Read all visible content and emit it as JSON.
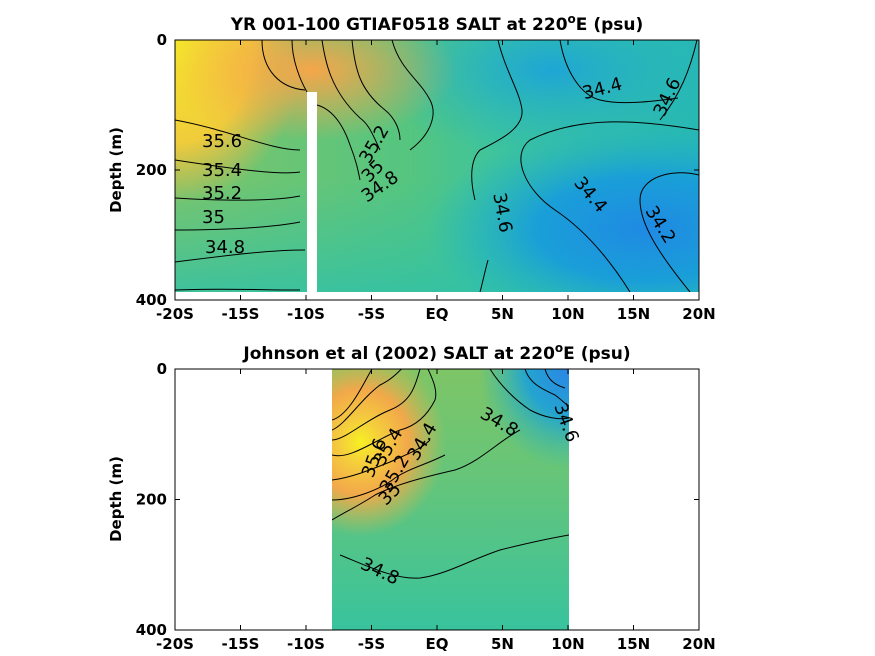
{
  "chart_data": [
    {
      "type": "heatmap",
      "title": "YR 001-100 GTIAF0518 SALT at 220",
      "title_sup": "o",
      "title_suffix": "E (psu)",
      "ylabel": "Depth (m)",
      "xlabel": "",
      "xlim": [
        -20,
        20
      ],
      "ylim": [
        0,
        400
      ],
      "y_reversed": true,
      "x_ticks": [
        -20,
        -15,
        -10,
        -5,
        0,
        5,
        10,
        15,
        20
      ],
      "x_tick_labels": [
        "-20S",
        "-15S",
        "-10S",
        "-5S",
        "EQ",
        "5N",
        "10N",
        "15N",
        "20N"
      ],
      "y_ticks": [
        0,
        200,
        400
      ],
      "y_tick_labels": [
        "0",
        "200",
        "400"
      ],
      "colormap": "parula",
      "color_range": [
        34.0,
        35.9
      ],
      "contour_labels": [
        {
          "text": "35.6",
          "x": -16.0,
          "y": 155
        },
        {
          "text": "35.4",
          "x": -16.0,
          "y": 196
        },
        {
          "text": "35.2",
          "x": -16.0,
          "y": 232
        },
        {
          "text": "35",
          "x": -16.8,
          "y": 266
        },
        {
          "text": "34.8",
          "x": -16.0,
          "y": 316
        },
        {
          "text": "35.2",
          "x": -6.2,
          "y": 160
        },
        {
          "text": "35",
          "x": -6.5,
          "y": 192
        },
        {
          "text": "34.8",
          "x": -5.5,
          "y": 212
        },
        {
          "text": "34.6",
          "x": 3.8,
          "y": 253
        },
        {
          "text": "34.4",
          "x": 12.5,
          "y": 68
        },
        {
          "text": "34.6",
          "x": 16.8,
          "y": 88
        },
        {
          "text": "34.4",
          "x": 10.5,
          "y": 252
        },
        {
          "text": "34.2",
          "x": 15.4,
          "y": 290
        }
      ]
    },
    {
      "type": "heatmap",
      "title": "Johnson et al (2002) SALT at 220",
      "title_sup": "o",
      "title_suffix": "E (psu)",
      "ylabel": "Depth (m)",
      "xlabel": "",
      "xlim": [
        -20,
        20
      ],
      "ylim": [
        0,
        400
      ],
      "y_reversed": true,
      "data_x_range": [
        -8,
        10
      ],
      "x_ticks": [
        -20,
        -15,
        -10,
        -5,
        0,
        5,
        10,
        15,
        20
      ],
      "x_tick_labels": [
        "-20S",
        "-15S",
        "-10S",
        "-5S",
        "EQ",
        "5N",
        "10N",
        "15N",
        "20N"
      ],
      "y_ticks": [
        0,
        200,
        400
      ],
      "y_tick_labels": [
        "0",
        "200",
        "400"
      ],
      "colormap": "parula",
      "color_range": [
        34.0,
        35.9
      ],
      "contour_labels": [
        {
          "text": "35.6",
          "x": -6.6,
          "y": 155
        },
        {
          "text": "35.4",
          "x": -5.3,
          "y": 130
        },
        {
          "text": "35.2",
          "x": -4.8,
          "y": 168
        },
        {
          "text": "35",
          "x": -4.6,
          "y": 190
        },
        {
          "text": "34.4",
          "x": -3.0,
          "y": 110
        },
        {
          "text": "34.8",
          "x": 4.8,
          "y": 95
        },
        {
          "text": "34.6",
          "x": 8.5,
          "y": 90
        },
        {
          "text": "34.8",
          "x": -2.8,
          "y": 322
        }
      ]
    }
  ]
}
